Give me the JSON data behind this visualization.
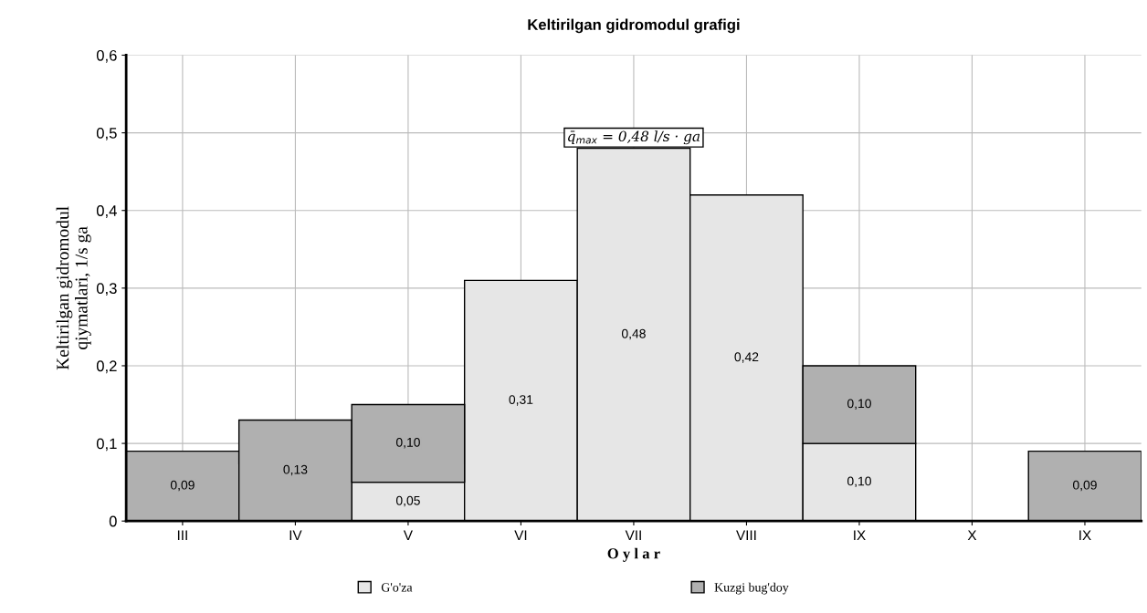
{
  "chart_data": {
    "type": "bar",
    "title": "Keltirilgan gidromodul grafigi",
    "xlabel": "O y l a r",
    "ylabel": "Keltirilgan gidromodul\nqiymatlari, 1/s ga",
    "categories": [
      "III",
      "IV",
      "V",
      "VI",
      "VII",
      "VIII",
      "IX",
      "X",
      "IX"
    ],
    "stacked": true,
    "series": [
      {
        "name": "G'o'za",
        "color": "#e6e6e6",
        "values": [
          null,
          null,
          0.05,
          0.31,
          0.48,
          0.42,
          0.1,
          null,
          null
        ],
        "value_labels": [
          null,
          null,
          "0,05",
          "0,31",
          "0,48",
          "0,42",
          "0,10",
          null,
          null
        ]
      },
      {
        "name": "Kuzgi bug'doy",
        "color": "#b0b0b0",
        "values": [
          0.09,
          0.13,
          0.1,
          null,
          null,
          null,
          0.1,
          null,
          0.09
        ],
        "value_labels": [
          "0,09",
          "0,13",
          "0,10",
          null,
          null,
          null,
          "0,10",
          null,
          "0,09"
        ]
      }
    ],
    "ylim": [
      0,
      0.6
    ],
    "yticks": [
      {
        "value": 0,
        "label": "0"
      },
      {
        "value": 0.1,
        "label": "0,1"
      },
      {
        "value": 0.2,
        "label": "0,2"
      },
      {
        "value": 0.3,
        "label": "0,3"
      },
      {
        "value": 0.4,
        "label": "0,4"
      },
      {
        "value": 0.5,
        "label": "0,5"
      },
      {
        "value": 0.6,
        "label": "0,6"
      }
    ],
    "annotations": [
      {
        "text": "q̄$_{max}$ = 0,48 l/s · ga",
        "x": "VII",
        "y": 0.48
      }
    ],
    "grid": true,
    "legend": "bottom"
  }
}
